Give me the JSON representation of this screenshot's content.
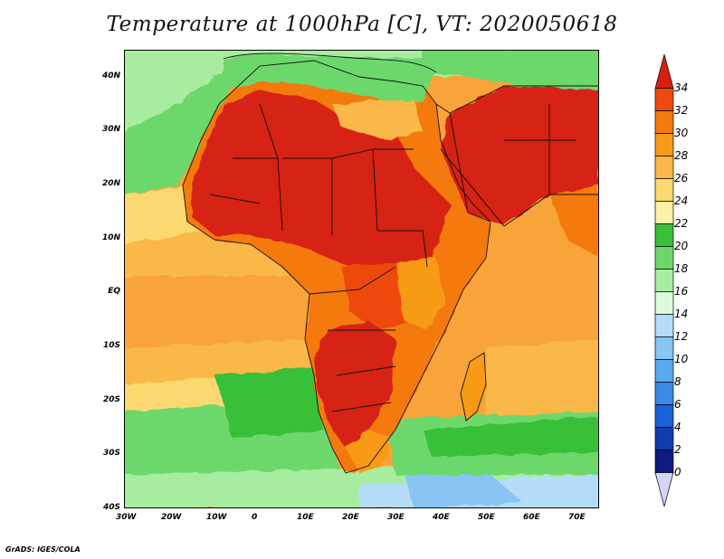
{
  "title": "Temperature at 1000hPa [C], VT: 2020050618",
  "credit": "GrADS: IGES/COLA",
  "map": {
    "lon_range": [
      -30,
      75
    ],
    "lat_range": [
      -40,
      45
    ],
    "x_ticks": [
      "30W",
      "20W",
      "10W",
      "0",
      "10E",
      "20E",
      "30E",
      "40E",
      "50E",
      "60E",
      "70E"
    ],
    "y_ticks": [
      "40N",
      "30N",
      "20N",
      "10N",
      "EQ",
      "10S",
      "20S",
      "30S",
      "40S"
    ]
  },
  "colorbar": {
    "labels": [
      "34",
      "32",
      "30",
      "28",
      "26",
      "24",
      "22",
      "20",
      "18",
      "16",
      "14",
      "12",
      "10",
      "8",
      "6",
      "4",
      "2",
      "0"
    ],
    "colors": [
      "#d72012",
      "#ee4a10",
      "#f47a10",
      "#f89a18",
      "#fab848",
      "#fcd870",
      "#fef0a8",
      "#38c038",
      "#6cd86c",
      "#a8eca0",
      "#dcfadc",
      "#b4dcf8",
      "#88c4f4",
      "#5aa8ee",
      "#3a8ae8",
      "#1a60d8",
      "#103cae",
      "#0c1c80",
      "#d4d4f8"
    ]
  }
}
